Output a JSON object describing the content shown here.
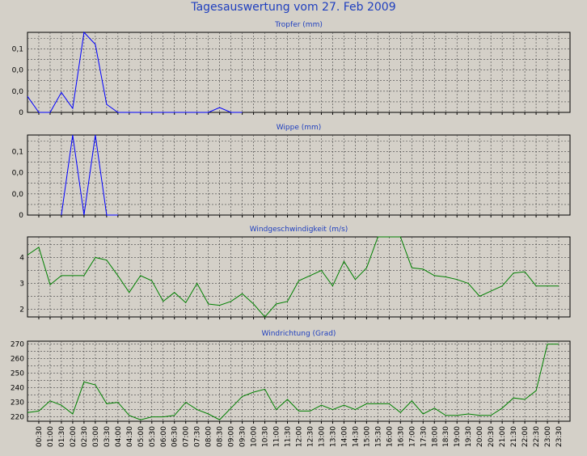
{
  "title": "Tagesauswertung vom 27. Feb 2009",
  "colors": {
    "background": "#d4d0c8",
    "title": "#1f3fbf",
    "rain_line": "#0000ff",
    "wind_line": "#008000",
    "grid": "#444444"
  },
  "chart_data": [
    {
      "type": "line",
      "title": "Tropfer (mm)",
      "ytick_labels": [
        "0",
        "0,0",
        "0,0",
        "0,1"
      ],
      "ylim": [
        0,
        0.2
      ],
      "grid": true,
      "series": [
        {
          "color": "#0000ff",
          "x": [
            "00:00",
            "00:30",
            "01:00",
            "01:30",
            "02:00",
            "02:30",
            "03:00",
            "03:30",
            "04:00",
            "04:30",
            "05:00",
            "05:30",
            "06:00",
            "06:30",
            "07:00",
            "07:30",
            "08:00",
            "08:30",
            "09:00",
            "09:30"
          ],
          "values": [
            0.04,
            0,
            0,
            0.05,
            0.01,
            0.2,
            0.17,
            0.02,
            0,
            0,
            0,
            0,
            0,
            0,
            0,
            0,
            0,
            0.012,
            0,
            0
          ]
        }
      ]
    },
    {
      "type": "line",
      "title": "Wippe (mm)",
      "ytick_labels": [
        "0",
        "0,0",
        "0,0",
        "0,1"
      ],
      "ylim": [
        0,
        0.2
      ],
      "grid": true,
      "series": [
        {
          "color": "#0000ff",
          "x": [
            "01:30",
            "02:00",
            "02:30",
            "03:00",
            "03:30",
            "04:00"
          ],
          "values": [
            0,
            0.2,
            0,
            0.2,
            0,
            0
          ]
        }
      ]
    },
    {
      "type": "line",
      "title": "Windgeschwindigkeit (m/s)",
      "yticks": [
        2,
        3,
        4
      ],
      "ylim": [
        1.7,
        4.8
      ],
      "grid": true,
      "series": [
        {
          "color": "#008000",
          "x": [
            "00:00",
            "00:30",
            "01:00",
            "01:30",
            "02:00",
            "02:30",
            "03:00",
            "03:30",
            "04:00",
            "04:30",
            "05:00",
            "05:30",
            "06:00",
            "06:30",
            "07:00",
            "07:30",
            "08:00",
            "08:30",
            "09:00",
            "09:30",
            "10:00",
            "10:30",
            "11:00",
            "11:30",
            "12:00",
            "12:30",
            "13:00",
            "13:30",
            "14:00",
            "14:30",
            "15:00",
            "15:30",
            "16:00",
            "16:30",
            "17:00",
            "17:30",
            "18:00",
            "18:30",
            "19:00",
            "19:30",
            "20:00",
            "20:30",
            "21:00",
            "21:30",
            "22:00",
            "22:30",
            "23:00",
            "23:30"
          ],
          "values": [
            4.1,
            4.4,
            2.95,
            3.3,
            3.3,
            3.3,
            4.0,
            3.9,
            3.3,
            2.65,
            3.3,
            3.1,
            2.3,
            2.65,
            2.25,
            3.0,
            2.2,
            2.15,
            2.3,
            2.6,
            2.2,
            1.7,
            2.2,
            2.3,
            3.1,
            3.3,
            3.5,
            2.9,
            3.85,
            3.15,
            3.6,
            4.8,
            4.8,
            4.8,
            3.6,
            3.55,
            3.3,
            3.25,
            3.15,
            3.0,
            2.5,
            2.7,
            2.9,
            3.4,
            3.45,
            2.9,
            2.9,
            2.9
          ]
        }
      ]
    },
    {
      "type": "line",
      "title": "Windrichtung (Grad)",
      "yticks": [
        220,
        230,
        240,
        250,
        260,
        270
      ],
      "ylim": [
        217,
        272
      ],
      "grid": true,
      "xtick_labels": [
        "00:30",
        "01:00",
        "01:30",
        "02:00",
        "02:30",
        "03:00",
        "03:30",
        "04:00",
        "04:30",
        "05:00",
        "05:30",
        "06:00",
        "06:30",
        "07:00",
        "07:30",
        "08:00",
        "08:30",
        "09:00",
        "09:30",
        "10:00",
        "10:30",
        "11:00",
        "11:30",
        "12:00",
        "12:30",
        "13:00",
        "13:30",
        "14:00",
        "14:30",
        "15:00",
        "15:30",
        "16:00",
        "16:30",
        "17:00",
        "17:30",
        "18:00",
        "18:30",
        "19:00",
        "19:30",
        "20:00",
        "20:30",
        "21:00",
        "21:30",
        "22:00",
        "22:30",
        "23:00",
        "23:30"
      ],
      "series": [
        {
          "color": "#008000",
          "x": [
            "00:00",
            "00:30",
            "01:00",
            "01:30",
            "02:00",
            "02:30",
            "03:00",
            "03:30",
            "04:00",
            "04:30",
            "05:00",
            "05:30",
            "06:00",
            "06:30",
            "07:00",
            "07:30",
            "08:00",
            "08:30",
            "09:00",
            "09:30",
            "10:00",
            "10:30",
            "11:00",
            "11:30",
            "12:00",
            "12:30",
            "13:00",
            "13:30",
            "14:00",
            "14:30",
            "15:00",
            "15:30",
            "16:00",
            "16:30",
            "17:00",
            "17:30",
            "18:00",
            "18:30",
            "19:00",
            "19:30",
            "20:00",
            "20:30",
            "21:00",
            "21:30",
            "22:00",
            "22:30",
            "23:00",
            "23:30"
          ],
          "values": [
            223,
            224,
            231,
            228,
            222,
            244,
            242,
            229,
            230,
            221,
            218,
            220,
            220,
            221,
            230,
            225,
            222,
            218,
            226,
            234,
            237,
            239,
            225,
            232,
            224,
            224,
            228,
            225,
            228,
            225,
            229,
            229,
            229,
            223,
            231,
            222,
            226,
            221,
            221,
            222,
            221,
            221,
            226,
            233,
            232,
            238,
            270,
            270
          ]
        }
      ]
    }
  ]
}
